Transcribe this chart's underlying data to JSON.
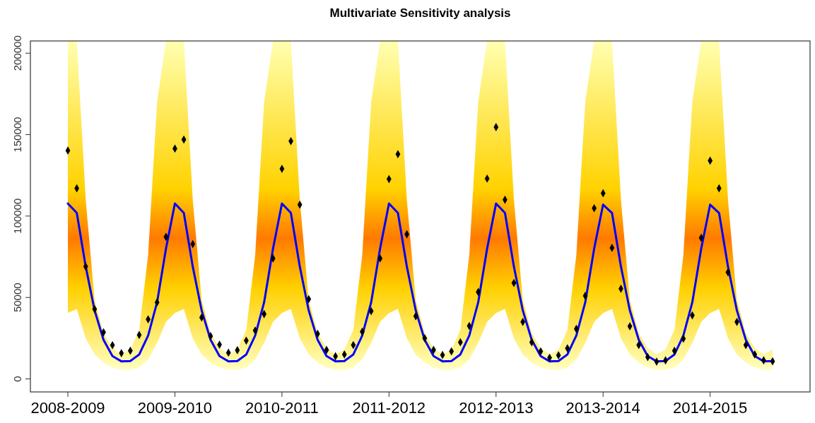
{
  "chart_data": {
    "type": "line",
    "title": "Multivariate Sensitivity analysis",
    "categories": [
      "2008-2009",
      null,
      null,
      null,
      null,
      null,
      null,
      null,
      null,
      null,
      null,
      null,
      "2009-2010",
      null,
      null,
      null,
      null,
      null,
      null,
      null,
      null,
      null,
      null,
      null,
      "2010-2011",
      null,
      null,
      null,
      null,
      null,
      null,
      null,
      null,
      null,
      null,
      null,
      "2011-2012",
      null,
      null,
      null,
      null,
      null,
      null,
      null,
      null,
      null,
      null,
      null,
      "2012-2013",
      null,
      null,
      null,
      null,
      null,
      null,
      null,
      null,
      null,
      null,
      null,
      "2013-2014",
      null,
      null,
      null,
      null,
      null,
      null,
      null,
      null,
      null,
      null,
      null,
      "2014-2015",
      null,
      null,
      null,
      null,
      null,
      null,
      null
    ],
    "ylim": [
      -8000,
      207500
    ],
    "yticks": [
      0,
      50000,
      100000,
      150000,
      200000
    ],
    "grid": false,
    "series": [
      {
        "color": "#0000ff",
        "marker": "none",
        "line_style": "solid",
        "values": [
          107700,
          101900,
          69000,
          42000,
          24000,
          14000,
          10800,
          11000,
          15000,
          26600,
          47000,
          80000,
          107700,
          101900,
          69000,
          42000,
          24000,
          14000,
          10800,
          11000,
          15000,
          26600,
          47000,
          80000,
          107700,
          101900,
          69000,
          42000,
          24000,
          14000,
          10800,
          11000,
          15000,
          26600,
          47000,
          80000,
          107700,
          101900,
          69000,
          42000,
          24000,
          14000,
          10800,
          11000,
          15000,
          26600,
          47000,
          80000,
          107700,
          101900,
          69000,
          42000,
          24000,
          14000,
          10800,
          11000,
          15000,
          26600,
          47000,
          80000,
          107000,
          101900,
          69000,
          42000,
          24000,
          14000,
          10800,
          11000,
          15000,
          26600,
          47000,
          80000,
          107000,
          101900,
          69000,
          42000,
          24000,
          14000,
          10800,
          11000
        ],
        "lower": [
          40500,
          43000,
          25000,
          15000,
          10000,
          7000,
          5500,
          5500,
          7000,
          12000,
          22000,
          35000,
          40500,
          43000,
          25000,
          15000,
          10000,
          7000,
          5500,
          5500,
          7000,
          12000,
          22000,
          35000,
          40500,
          43000,
          25000,
          15000,
          10000,
          7000,
          5500,
          5500,
          7000,
          12000,
          22000,
          35000,
          40500,
          43000,
          25000,
          15000,
          10000,
          7000,
          5500,
          5500,
          7000,
          12000,
          22000,
          35000,
          40500,
          43000,
          25000,
          15000,
          10000,
          7000,
          5500,
          5500,
          7000,
          12000,
          22000,
          35000,
          40500,
          43000,
          25000,
          15000,
          10000,
          7000,
          5500,
          5500,
          7000,
          12000,
          22000,
          35000,
          40500,
          43000,
          25000,
          15000,
          10000,
          7000,
          5500,
          5500
        ],
        "upper": [
          207500,
          207500,
          110000,
          48000,
          28000,
          19000,
          15000,
          18000,
          30000,
          76000,
          170000,
          207500,
          207500,
          207500,
          110000,
          48000,
          28000,
          19000,
          15000,
          18000,
          30000,
          76000,
          170000,
          207500,
          207500,
          207500,
          110000,
          48000,
          28000,
          19000,
          15000,
          18000,
          30000,
          76000,
          170000,
          207500,
          207500,
          207500,
          110000,
          48000,
          28000,
          19000,
          15000,
          18000,
          30000,
          76000,
          170000,
          207500,
          207500,
          207500,
          110000,
          48000,
          28000,
          19000,
          15000,
          18000,
          30000,
          76000,
          170000,
          207500,
          207500,
          207500,
          110000,
          48000,
          28000,
          19000,
          15000,
          18000,
          30000,
          76000,
          170000,
          207500,
          207500,
          207500,
          110000,
          48000,
          28000,
          19000,
          15000,
          18000
        ]
      },
      {
        "type": "scatter",
        "color": "#000000",
        "marker": "diamond",
        "values": [
          140200,
          117000,
          69000,
          42800,
          28600,
          20700,
          15800,
          17300,
          27000,
          36600,
          47000,
          87200,
          141400,
          147000,
          82800,
          37700,
          26300,
          21000,
          16100,
          17600,
          23500,
          29700,
          39800,
          74000,
          129000,
          146000,
          107000,
          49000,
          27700,
          17800,
          13900,
          15000,
          20800,
          29000,
          41600,
          74000,
          122700,
          138000,
          88800,
          38500,
          25000,
          17800,
          14700,
          16900,
          22500,
          32500,
          53400,
          123000,
          154600,
          110000,
          58900,
          35000,
          22500,
          16900,
          13000,
          14500,
          18800,
          30700,
          51000,
          104800,
          114000,
          80500,
          55400,
          32300,
          20800,
          13400,
          10600,
          11400,
          17300,
          24700,
          39000,
          86600,
          134000,
          117000,
          65500,
          35000,
          20800,
          15000,
          11400,
          10800
        ]
      }
    ]
  }
}
